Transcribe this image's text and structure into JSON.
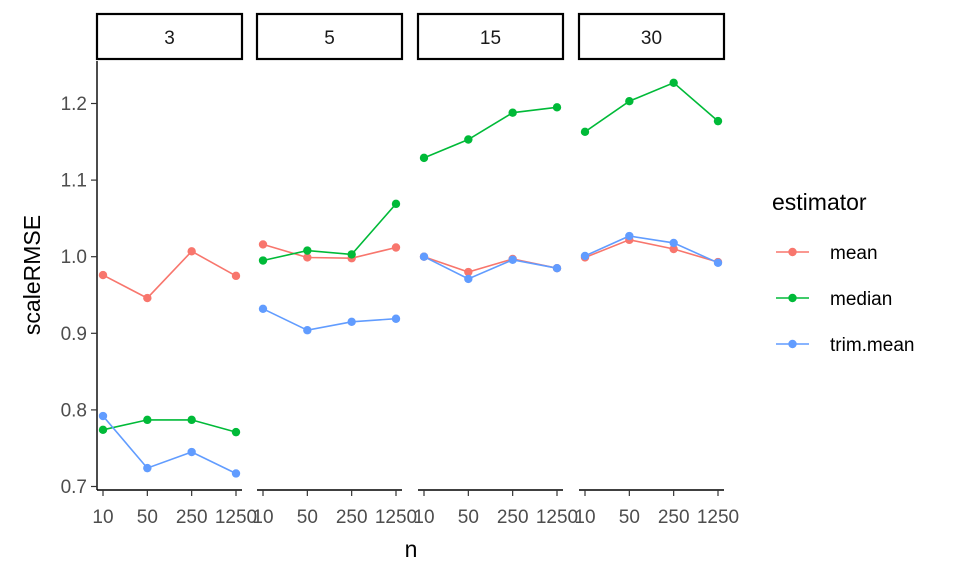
{
  "chart_data": {
    "type": "line",
    "facet_by": "panel",
    "panels": [
      "3",
      "5",
      "15",
      "30"
    ],
    "xlabel": "n",
    "ylabel": "scaleRMSE",
    "x_ticks": [
      "10",
      "50",
      "250",
      "1250"
    ],
    "y_ticks": [
      0.7,
      0.8,
      0.9,
      1.0,
      1.1,
      1.2
    ],
    "y_tick_labels": [
      "0.7",
      "0.8",
      "0.9",
      "1.0",
      "1.1",
      "1.2"
    ],
    "ylim": [
      0.695,
      1.25
    ],
    "legend": {
      "title": "estimator",
      "position": "right",
      "entries": [
        "mean",
        "median",
        "trim.mean"
      ]
    },
    "colors": {
      "mean": "#F8766D",
      "median": "#00BA38",
      "trim.mean": "#619CFF"
    },
    "series": [
      {
        "name": "mean",
        "panels": {
          "3": [
            0.976,
            0.946,
            1.007,
            0.975
          ],
          "5": [
            1.016,
            0.999,
            0.998,
            1.012
          ],
          "15": [
            1.0,
            0.98,
            0.997,
            0.985
          ],
          "30": [
            0.999,
            1.022,
            1.01,
            0.993
          ]
        }
      },
      {
        "name": "median",
        "panels": {
          "3": [
            0.774,
            0.787,
            0.787,
            0.771
          ],
          "5": [
            0.995,
            1.008,
            1.003,
            1.069
          ],
          "15": [
            1.129,
            1.153,
            1.188,
            1.195
          ],
          "30": [
            1.163,
            1.203,
            1.227,
            1.177
          ]
        }
      },
      {
        "name": "trim.mean",
        "panels": {
          "3": [
            0.792,
            0.724,
            0.745,
            0.717
          ],
          "5": [
            0.932,
            0.904,
            0.915,
            0.919
          ],
          "15": [
            1.0,
            0.971,
            0.996,
            0.985
          ],
          "30": [
            1.001,
            1.027,
            1.018,
            0.992
          ]
        }
      }
    ]
  }
}
